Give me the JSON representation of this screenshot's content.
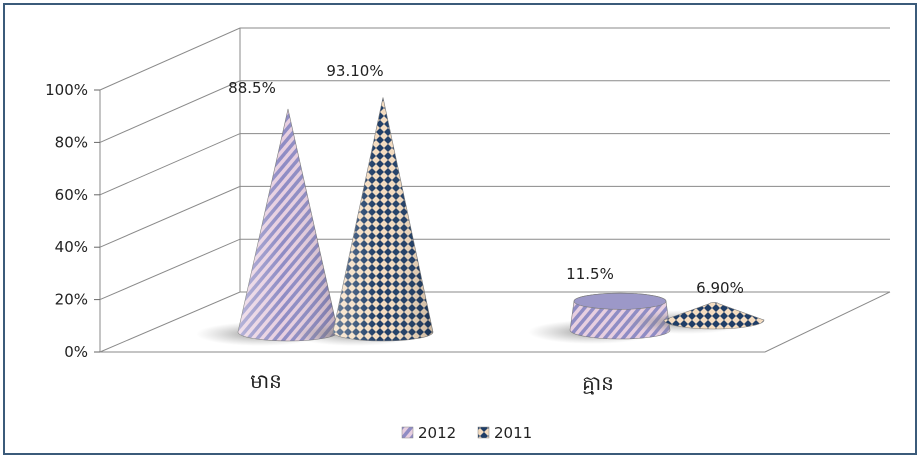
{
  "chart_data": {
    "type": "bar",
    "shape": "cone-3d",
    "categories": [
      "មាន",
      "គ្មាន"
    ],
    "series": [
      {
        "name": "2012",
        "values": [
          88.5,
          11.5
        ],
        "labels": [
          "88.5%",
          "11.5%"
        ],
        "color": "#9a8fc4",
        "pattern": "diagonal-stripes"
      },
      {
        "name": "2011",
        "values": [
          93.1,
          6.9
        ],
        "labels": [
          "93.10%",
          "6.90%"
        ],
        "color": "#1f3d66",
        "pattern": "diamonds"
      }
    ],
    "yticks": [
      "0%",
      "20%",
      "40%",
      "60%",
      "80%",
      "100%"
    ],
    "ylim": [
      0,
      100
    ],
    "grid": true,
    "legend": "bottom"
  }
}
